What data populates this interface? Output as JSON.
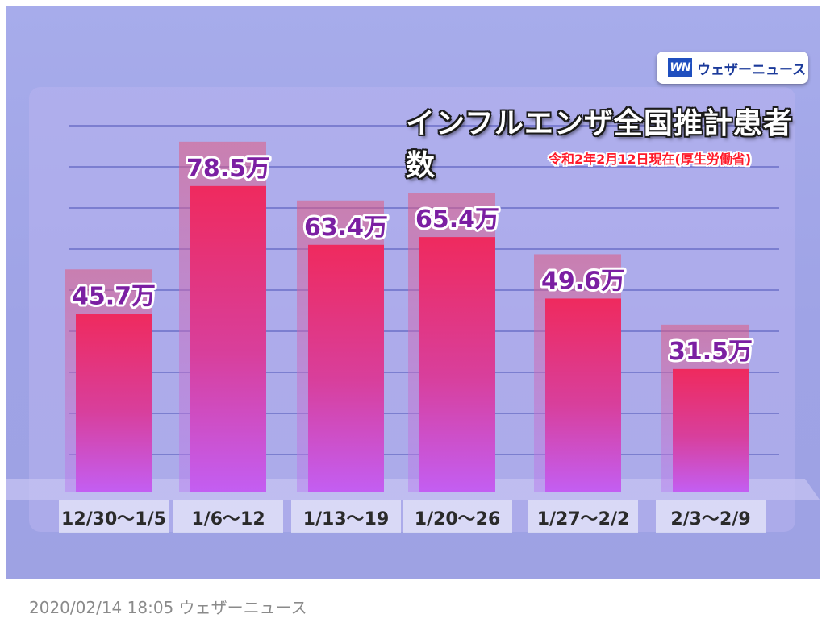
{
  "logo": {
    "mark": "WN",
    "text": "ウェザーニュース"
  },
  "footer": {
    "date": "2020/02/14 18:05",
    "source": "ウェザーニュース"
  },
  "chart_data": {
    "type": "bar",
    "title": "インフルエンザ全国推計患者数",
    "subtitle": "令和2年2月12日現在(厚生労働省)",
    "categories": [
      "12/30～1/5",
      "1/6～12",
      "1/13～19",
      "1/20～26",
      "1/27～2/2",
      "2/3～2/9"
    ],
    "values": [
      45.7,
      78.5,
      63.4,
      65.4,
      49.6,
      31.5
    ],
    "data_labels": [
      "45.7万",
      "78.5万",
      "63.4万",
      "65.4万",
      "49.6万",
      "31.5万"
    ],
    "unit": "万",
    "ylim": [
      0,
      90
    ],
    "grid": true,
    "colors": {
      "top": "#ef2a5e",
      "bottom": "#c35ef2",
      "label": "#7b1fa2",
      "grid": "#6b6fc7"
    }
  }
}
